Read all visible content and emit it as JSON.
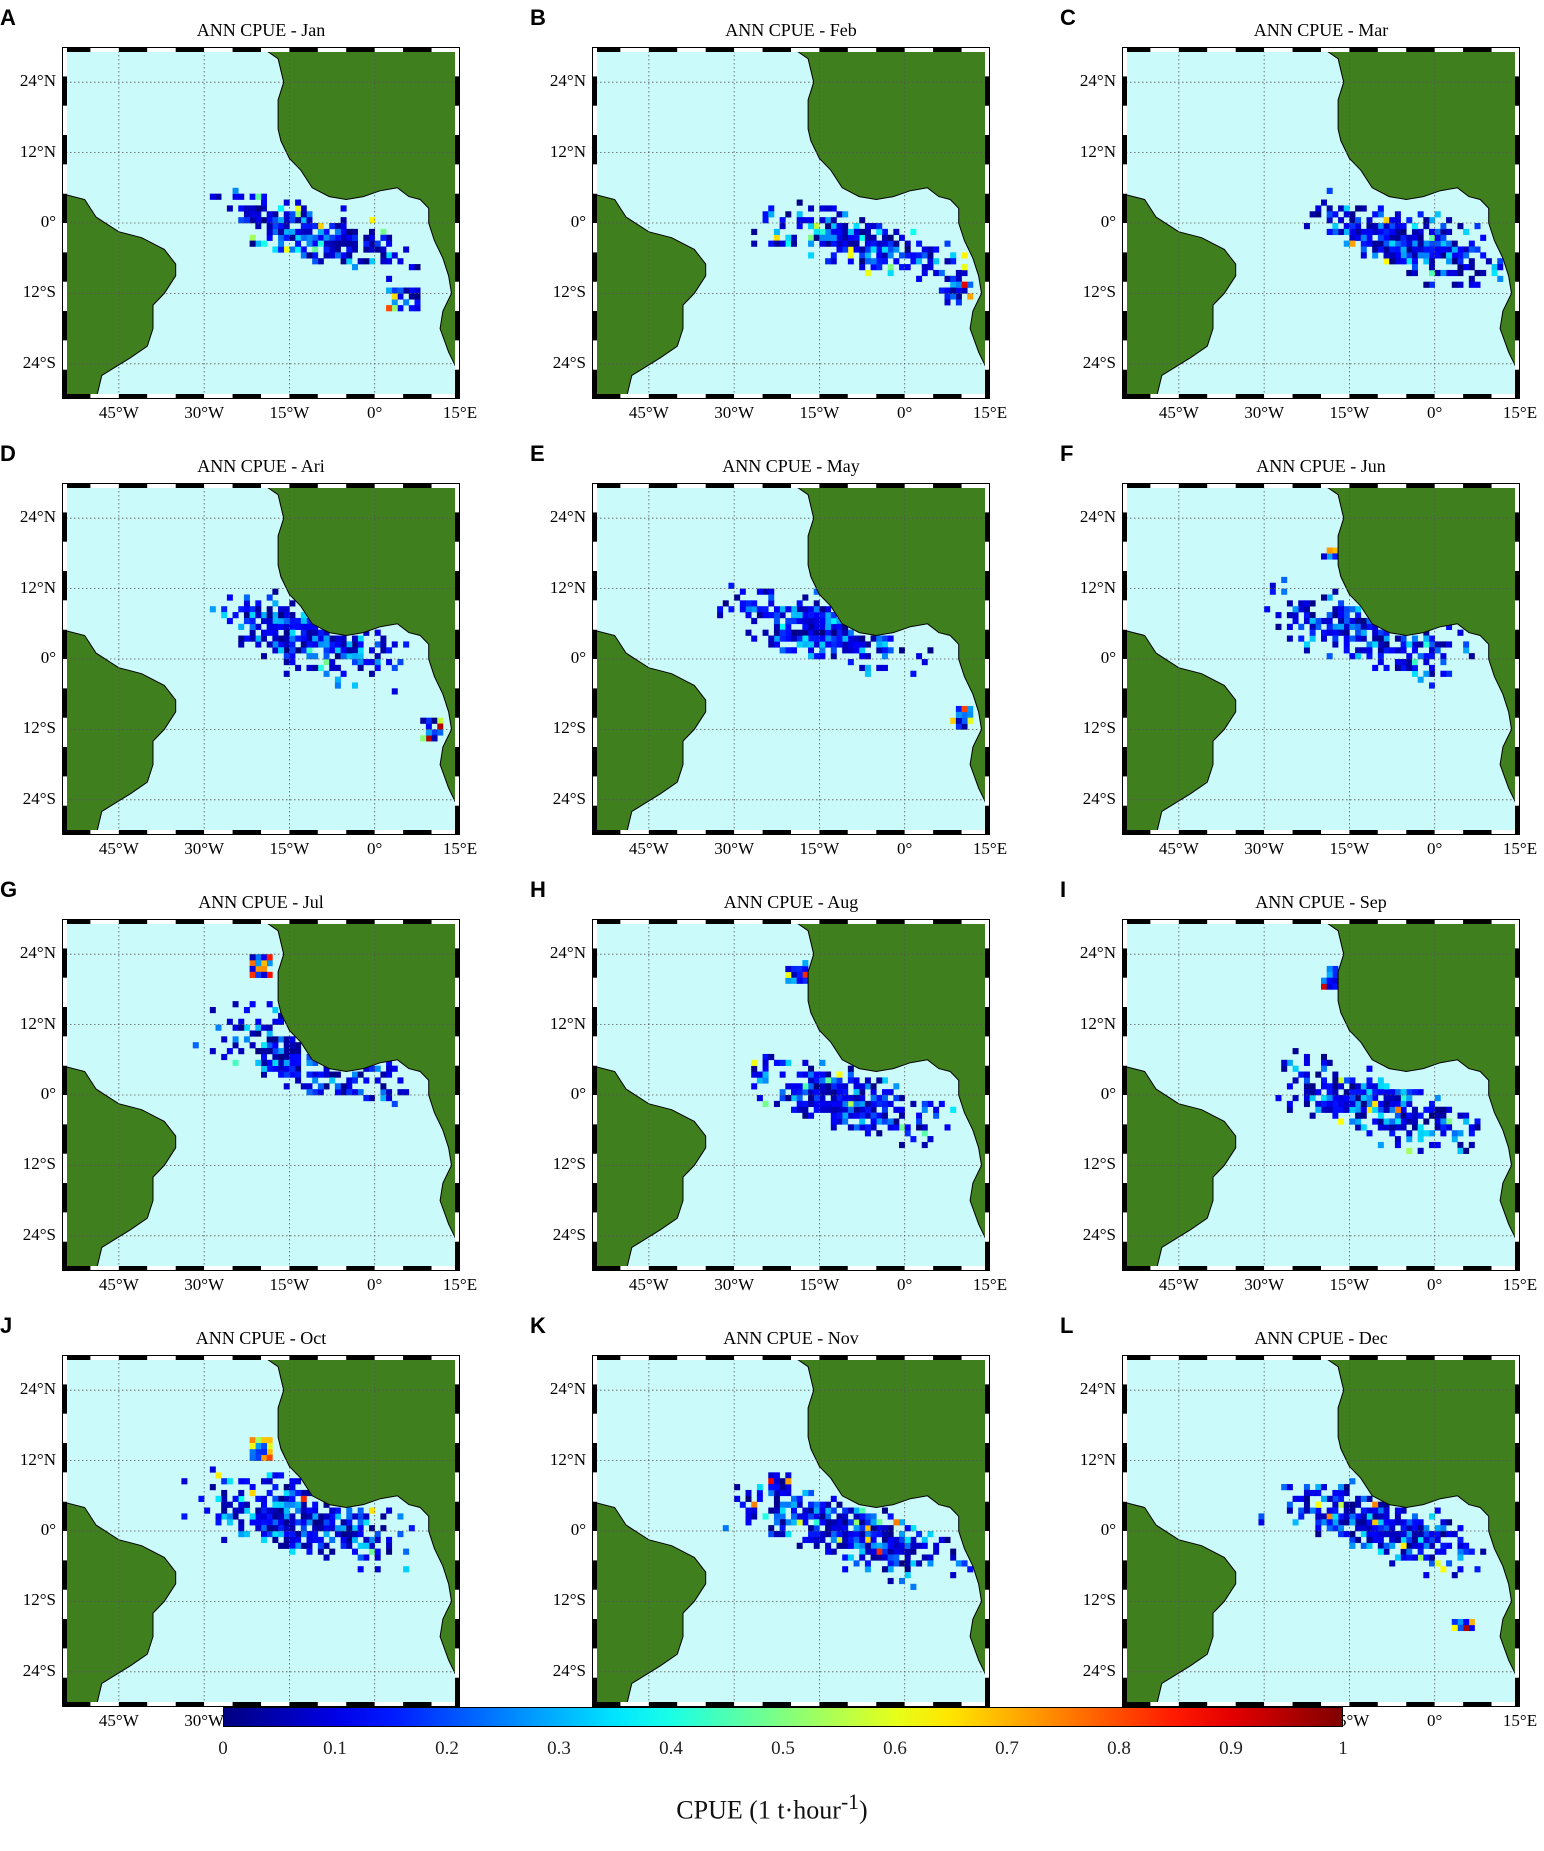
{
  "panels": [
    {
      "letter": "A",
      "title": "ANN CPUE - Jan"
    },
    {
      "letter": "B",
      "title": "ANN CPUE - Feb"
    },
    {
      "letter": "C",
      "title": "ANN CPUE - Mar"
    },
    {
      "letter": "D",
      "title": "ANN CPUE - Ari"
    },
    {
      "letter": "E",
      "title": "ANN CPUE - May"
    },
    {
      "letter": "F",
      "title": "ANN CPUE - Jun"
    },
    {
      "letter": "G",
      "title": "ANN CPUE - Jul"
    },
    {
      "letter": "H",
      "title": "ANN CPUE - Aug"
    },
    {
      "letter": "I",
      "title": "ANN CPUE - Sep"
    },
    {
      "letter": "J",
      "title": "ANN CPUE - Oct"
    },
    {
      "letter": "K",
      "title": "ANN CPUE - Nov"
    },
    {
      "letter": "L",
      "title": "ANN CPUE - Dec"
    }
  ],
  "map": {
    "lon_range": [
      -55,
      15
    ],
    "lat_range": [
      -30,
      30
    ],
    "lat_ticks": [
      {
        "value": 24,
        "label": "24°N"
      },
      {
        "value": 12,
        "label": "12°N"
      },
      {
        "value": 0,
        "label": "0°"
      },
      {
        "value": -12,
        "label": "12°S"
      },
      {
        "value": -24,
        "label": "24°S"
      }
    ],
    "lon_ticks": [
      {
        "value": -45,
        "label": "45°W"
      },
      {
        "value": -30,
        "label": "30°W"
      },
      {
        "value": -15,
        "label": "15°W"
      },
      {
        "value": 0,
        "label": "0°"
      },
      {
        "value": 15,
        "label": "15°E"
      }
    ],
    "colors": {
      "ocean": "#cbfafa",
      "land": "#3f7f1e",
      "grid": "#555555"
    }
  },
  "colorbar": {
    "title": "CPUE (1 t·hour",
    "title_sup": "-1",
    "title_end": ")",
    "range": [
      0,
      1
    ],
    "ticks": [
      "0",
      "0.1",
      "0.2",
      "0.3",
      "0.4",
      "0.5",
      "0.6",
      "0.7",
      "0.8",
      "0.9",
      "1"
    ],
    "colormap": "jet"
  }
}
